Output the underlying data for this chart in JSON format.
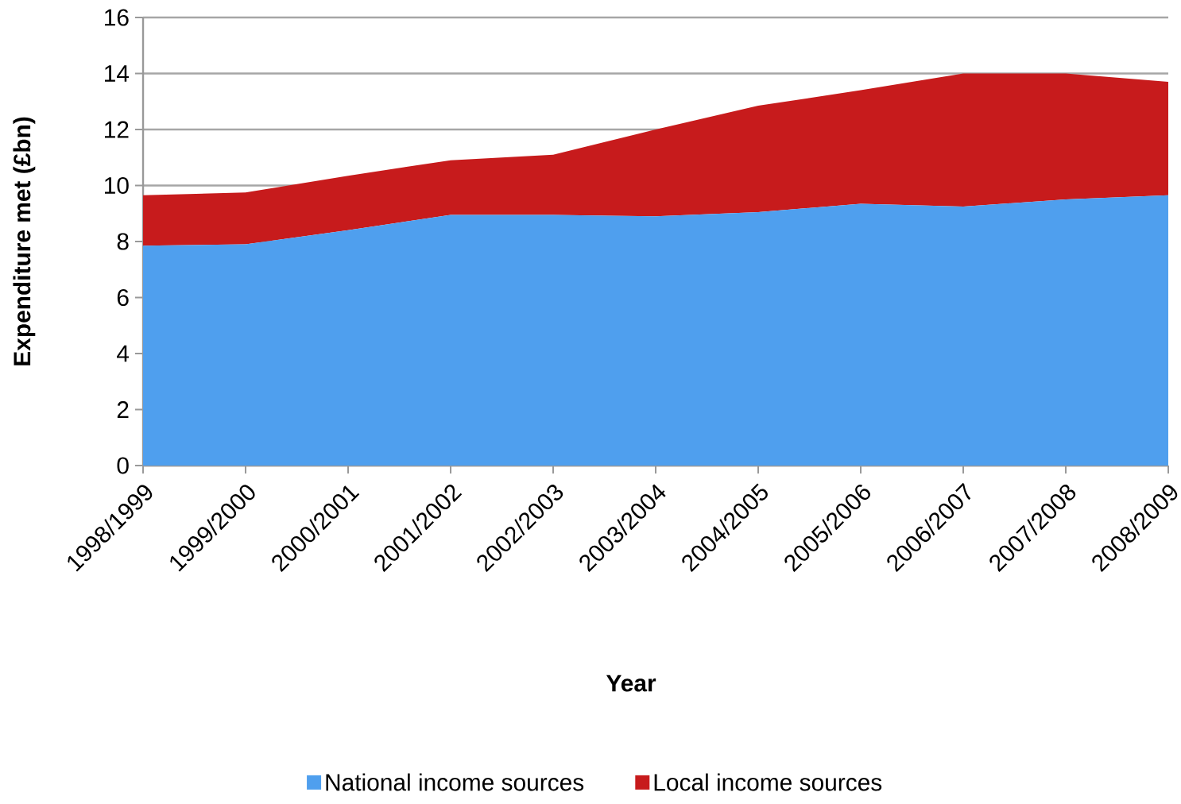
{
  "chart_data": {
    "type": "area",
    "stacked": true,
    "xlabel": "Year",
    "ylabel": "Expenditure met (£bn)",
    "categories": [
      "1998/1999",
      "1999/2000",
      "2000/2001",
      "2001/2002",
      "2002/2003",
      "2003/2004",
      "2004/2005",
      "2005/2006",
      "2006/2007",
      "2007/2008",
      "2008/2009"
    ],
    "series": [
      {
        "name": "National income sources",
        "color": "#4f9fee",
        "values": [
          7.85,
          7.9,
          8.4,
          8.95,
          8.95,
          8.9,
          9.05,
          9.35,
          9.25,
          9.5,
          9.65
        ]
      },
      {
        "name": "Local income sources",
        "color": "#c71b1c",
        "values": [
          1.8,
          1.85,
          1.95,
          1.95,
          2.15,
          3.1,
          3.8,
          4.05,
          4.75,
          4.5,
          4.05
        ]
      }
    ],
    "ylim": [
      0,
      16
    ],
    "yticks": [
      0,
      2,
      4,
      6,
      8,
      10,
      12,
      14,
      16
    ],
    "grid": "y",
    "legend": "bottom"
  }
}
